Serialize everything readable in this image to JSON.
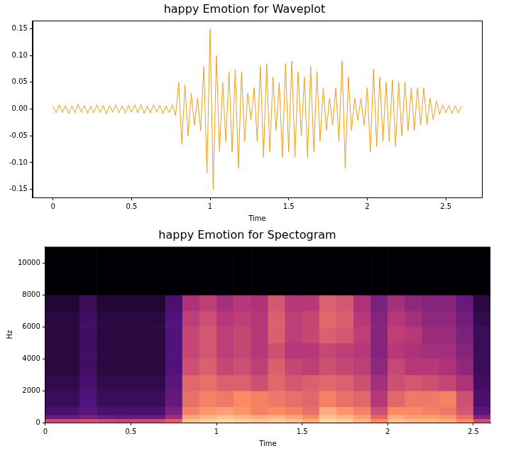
{
  "chart_data": [
    {
      "type": "line",
      "title": "happy Emotion for Waveplot",
      "x_label": "Time",
      "color": "#f39c12",
      "grid": false,
      "xlim": [
        -0.13,
        2.73
      ],
      "xticks": [
        0,
        0.5,
        1,
        1.5,
        2,
        2.5
      ],
      "ylim": [
        -0.165,
        0.165
      ],
      "yticks": [
        -0.15,
        {
          "value": -0.1,
          "label": "-0.10"
        },
        -0.05,
        {
          "value": 0,
          "label": "0.00"
        },
        0.05,
        {
          "value": 0.1,
          "label": "0.10"
        },
        0.15
      ],
      "x": [
        0,
        0.02,
        0.04,
        0.06,
        0.08,
        0.1,
        0.12,
        0.14,
        0.16,
        0.18,
        0.2,
        0.22,
        0.24,
        0.26,
        0.28,
        0.3,
        0.32,
        0.34,
        0.36,
        0.38,
        0.4,
        0.42,
        0.44,
        0.46,
        0.48,
        0.5,
        0.52,
        0.54,
        0.56,
        0.58,
        0.6,
        0.62,
        0.64,
        0.66,
        0.68,
        0.7,
        0.72,
        0.74,
        0.76,
        0.78,
        0.8,
        0.82,
        0.84,
        0.86,
        0.88,
        0.9,
        0.92,
        0.94,
        0.96,
        0.98,
        1,
        1.02,
        1.04,
        1.06,
        1.08,
        1.1,
        1.12,
        1.14,
        1.16,
        1.18,
        1.2,
        1.22,
        1.24,
        1.26,
        1.28,
        1.3,
        1.32,
        1.34,
        1.36,
        1.38,
        1.4,
        1.42,
        1.44,
        1.46,
        1.48,
        1.5,
        1.52,
        1.54,
        1.56,
        1.58,
        1.6,
        1.62,
        1.64,
        1.66,
        1.68,
        1.7,
        1.72,
        1.74,
        1.76,
        1.78,
        1.8,
        1.82,
        1.84,
        1.86,
        1.88,
        1.9,
        1.92,
        1.94,
        1.96,
        1.98,
        2,
        2.02,
        2.04,
        2.06,
        2.08,
        2.1,
        2.12,
        2.14,
        2.16,
        2.18,
        2.2,
        2.22,
        2.24,
        2.26,
        2.28,
        2.3,
        2.32,
        2.34,
        2.36,
        2.38,
        2.4,
        2.42,
        2.44,
        2.46,
        2.48,
        2.5,
        2.52,
        2.54,
        2.56,
        2.58,
        2.6
      ],
      "values": [
        0.006,
        -0.007,
        0.008,
        -0.006,
        0.007,
        -0.008,
        0.006,
        -0.007,
        0.009,
        -0.006,
        0.007,
        -0.008,
        0.006,
        -0.007,
        0.008,
        -0.006,
        0.007,
        -0.009,
        0.007,
        -0.006,
        0.008,
        -0.007,
        0.006,
        -0.008,
        0.007,
        -0.006,
        0.008,
        -0.007,
        0.009,
        -0.008,
        0.006,
        -0.007,
        0.008,
        -0.006,
        0.007,
        -0.008,
        0.006,
        -0.007,
        0.008,
        -0.012,
        0.05,
        -0.065,
        0.045,
        -0.05,
        0.03,
        -0.03,
        0.02,
        -0.04,
        0.08,
        -0.12,
        0.15,
        -0.15,
        0.1,
        -0.08,
        0.05,
        -0.06,
        0.07,
        -0.08,
        0.075,
        -0.11,
        0.07,
        -0.06,
        0.03,
        -0.02,
        0.04,
        -0.06,
        0.08,
        -0.09,
        0.085,
        -0.08,
        0.06,
        -0.04,
        0.05,
        -0.09,
        0.085,
        -0.08,
        0.09,
        -0.09,
        0.07,
        -0.05,
        0.06,
        -0.09,
        0.08,
        -0.08,
        0.07,
        -0.06,
        0.04,
        -0.04,
        0.02,
        -0.03,
        0.04,
        -0.06,
        0.09,
        -0.11,
        0.06,
        -0.04,
        0.02,
        -0.02,
        0.02,
        -0.03,
        0.04,
        -0.08,
        0.075,
        -0.07,
        0.06,
        -0.06,
        0.05,
        -0.06,
        0.055,
        -0.07,
        0.05,
        -0.05,
        0.05,
        -0.04,
        0.04,
        -0.04,
        0.04,
        -0.03,
        0.04,
        -0.03,
        0.02,
        -0.02,
        0.015,
        -0.01,
        0.008,
        -0.007,
        0.007,
        -0.008,
        0.006,
        -0.007,
        0.005
      ]
    },
    {
      "type": "heatmap",
      "title": "happy Emotion for Spectogram",
      "x_label": "Time",
      "y_label": "Hz",
      "grid": false,
      "xlim": [
        0,
        2.6
      ],
      "xticks": [
        0,
        0.5,
        1,
        1.5,
        2,
        2.5
      ],
      "ylim": [
        0,
        11025
      ],
      "yticks": [
        0,
        2000,
        4000,
        6000,
        8000,
        10000
      ],
      "zlim": [
        -80,
        0
      ],
      "x_edges": [
        0,
        0.1,
        0.2,
        0.3,
        0.4,
        0.5,
        0.6,
        0.7,
        0.8,
        0.9,
        1,
        1.1,
        1.2,
        1.3,
        1.4,
        1.5,
        1.6,
        1.7,
        1.8,
        1.9,
        2,
        2.1,
        2.2,
        2.3,
        2.4,
        2.5,
        2.6
      ],
      "y_edges": [
        0,
        250,
        500,
        1000,
        2000,
        3000,
        4000,
        5000,
        6000,
        7000,
        8000,
        11025
      ],
      "cells": [
        [
          -35,
          -35,
          -34,
          -35,
          -36,
          -35,
          -35,
          -30,
          -10,
          -8,
          -6,
          -8,
          -10,
          -8,
          -10,
          -14,
          -6,
          -8,
          -12,
          -20,
          -10,
          -12,
          -12,
          -14,
          -20,
          -34
        ],
        [
          -55,
          -55,
          -52,
          -55,
          -56,
          -55,
          -55,
          -45,
          -15,
          -12,
          -10,
          -12,
          -14,
          -12,
          -15,
          -20,
          -10,
          -12,
          -16,
          -28,
          -14,
          -16,
          -16,
          -18,
          -26,
          -50
        ],
        [
          -62,
          -62,
          -58,
          -62,
          -62,
          -62,
          -62,
          -52,
          -22,
          -18,
          -16,
          -18,
          -22,
          -20,
          -22,
          -26,
          -14,
          -18,
          -22,
          -34,
          -20,
          -20,
          -22,
          -24,
          -32,
          -58
        ],
        [
          -66,
          -66,
          -60,
          -66,
          -66,
          -66,
          -66,
          -56,
          -26,
          -22,
          -24,
          -20,
          -22,
          -24,
          -26,
          -28,
          -22,
          -26,
          -28,
          -40,
          -28,
          -24,
          -24,
          -22,
          -34,
          -62
        ],
        [
          -68,
          -68,
          -62,
          -68,
          -68,
          -68,
          -68,
          -58,
          -28,
          -26,
          -30,
          -30,
          -34,
          -28,
          -32,
          -30,
          -28,
          -30,
          -34,
          -44,
          -34,
          -32,
          -34,
          -36,
          -42,
          -64
        ],
        [
          -70,
          -70,
          -64,
          -70,
          -70,
          -70,
          -70,
          -60,
          -34,
          -30,
          -36,
          -34,
          -38,
          -30,
          -36,
          -38,
          -34,
          -36,
          -38,
          -48,
          -36,
          -40,
          -40,
          -42,
          -48,
          -66
        ],
        [
          -70,
          -70,
          -64,
          -70,
          -70,
          -70,
          -70,
          -60,
          -36,
          -32,
          -38,
          -36,
          -40,
          -34,
          -40,
          -40,
          -36,
          -38,
          -40,
          -50,
          -40,
          -42,
          -44,
          -44,
          -50,
          -66
        ],
        [
          -70,
          -70,
          -64,
          -70,
          -70,
          -70,
          -70,
          -60,
          -36,
          -32,
          -38,
          -36,
          -40,
          -30,
          -38,
          -36,
          -30,
          -32,
          -38,
          -50,
          -38,
          -40,
          -46,
          -46,
          -52,
          -66
        ],
        [
          -70,
          -70,
          -64,
          -70,
          -70,
          -70,
          -70,
          -60,
          -38,
          -34,
          -40,
          -38,
          -40,
          -30,
          -38,
          -36,
          -28,
          -30,
          -40,
          -50,
          -40,
          -44,
          -48,
          -48,
          -54,
          -68
        ],
        [
          -72,
          -72,
          -66,
          -72,
          -72,
          -72,
          -72,
          -62,
          -42,
          -38,
          -44,
          -40,
          -42,
          -32,
          -40,
          -40,
          -30,
          -32,
          -42,
          -52,
          -44,
          -48,
          -50,
          -50,
          -56,
          -70
        ],
        [
          -80,
          -80,
          -80,
          -80,
          -80,
          -80,
          -80,
          -80,
          -80,
          -80,
          -80,
          -80,
          -80,
          -80,
          -80,
          -80,
          -80,
          -80,
          -80,
          -80,
          -80,
          -80,
          -80,
          -80,
          -80,
          -80
        ]
      ]
    }
  ]
}
